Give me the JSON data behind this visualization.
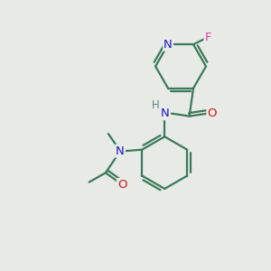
{
  "background_color": "#e8eae6",
  "bond_color": "#3a7a5a",
  "atom_colors": {
    "N": "#1a1acc",
    "O": "#cc1a1a",
    "F": "#cc44aa",
    "H": "#5a8888",
    "C": "#3a7a5a"
  },
  "figsize": [
    3.0,
    3.0
  ],
  "dpi": 100
}
